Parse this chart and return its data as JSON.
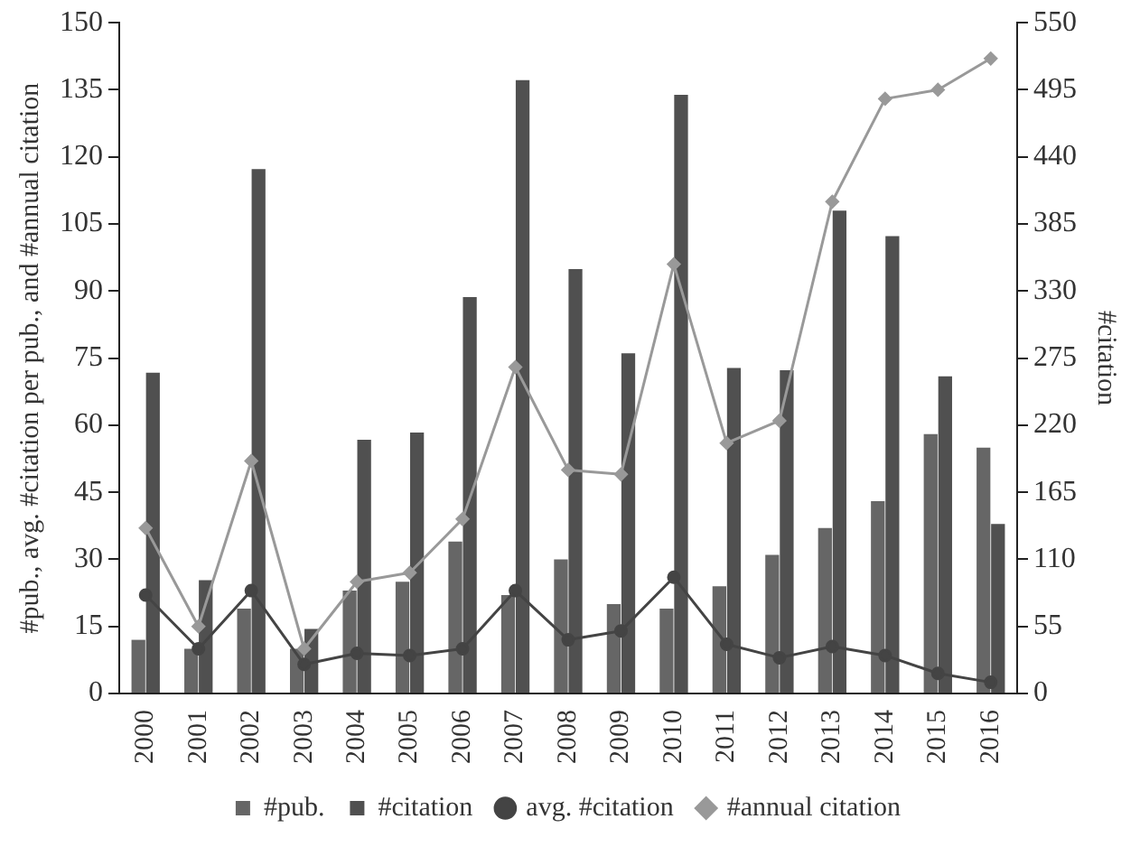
{
  "chart_data": {
    "type": "bar",
    "ylabel": "#pub., avg. #citation per pub., and #annual citation",
    "y2label": "#citation",
    "categories": [
      "2000",
      "2001",
      "2002",
      "2003",
      "2004",
      "2005",
      "2006",
      "2007",
      "2008",
      "2009",
      "2010",
      "2011",
      "2012",
      "2013",
      "2014",
      "2015",
      "2016"
    ],
    "series": [
      {
        "name": "#pub.",
        "color": "#666666",
        "values": [
          12,
          10,
          19,
          10,
          23,
          25,
          34,
          22,
          30,
          20,
          19,
          24,
          31,
          37,
          43,
          58,
          55
        ]
      },
      {
        "name": "#citation",
        "type": "bar",
        "axis": "y2",
        "color": "#505050",
        "values": [
          263,
          93,
          430,
          53,
          208,
          214,
          325,
          503,
          348,
          279,
          491,
          267,
          265,
          396,
          375,
          260,
          139
        ]
      },
      {
        "name": "avg. #citation",
        "type": "line",
        "color": "#444444",
        "marker": "circle",
        "values": [
          22,
          10,
          23,
          6.5,
          9,
          8.5,
          10,
          23,
          12,
          14,
          26,
          11,
          8,
          10.5,
          8.5,
          4.5,
          2.5
        ]
      },
      {
        "name": "#annual citation",
        "type": "line",
        "color": "#999999",
        "marker": "diamond",
        "values": [
          37,
          15,
          52,
          10,
          25,
          27,
          39,
          73,
          50,
          49,
          96,
          56,
          61,
          110,
          133,
          135,
          142
        ]
      }
    ],
    "ylim": [
      0,
      150
    ],
    "yticks": [
      0,
      15,
      30,
      45,
      60,
      75,
      90,
      105,
      120,
      135,
      150
    ],
    "y2lim": [
      0,
      550
    ],
    "y2ticks": [
      0,
      55,
      110,
      165,
      220,
      275,
      330,
      385,
      440,
      495,
      550
    ],
    "grid": false,
    "legend": "bottom"
  }
}
